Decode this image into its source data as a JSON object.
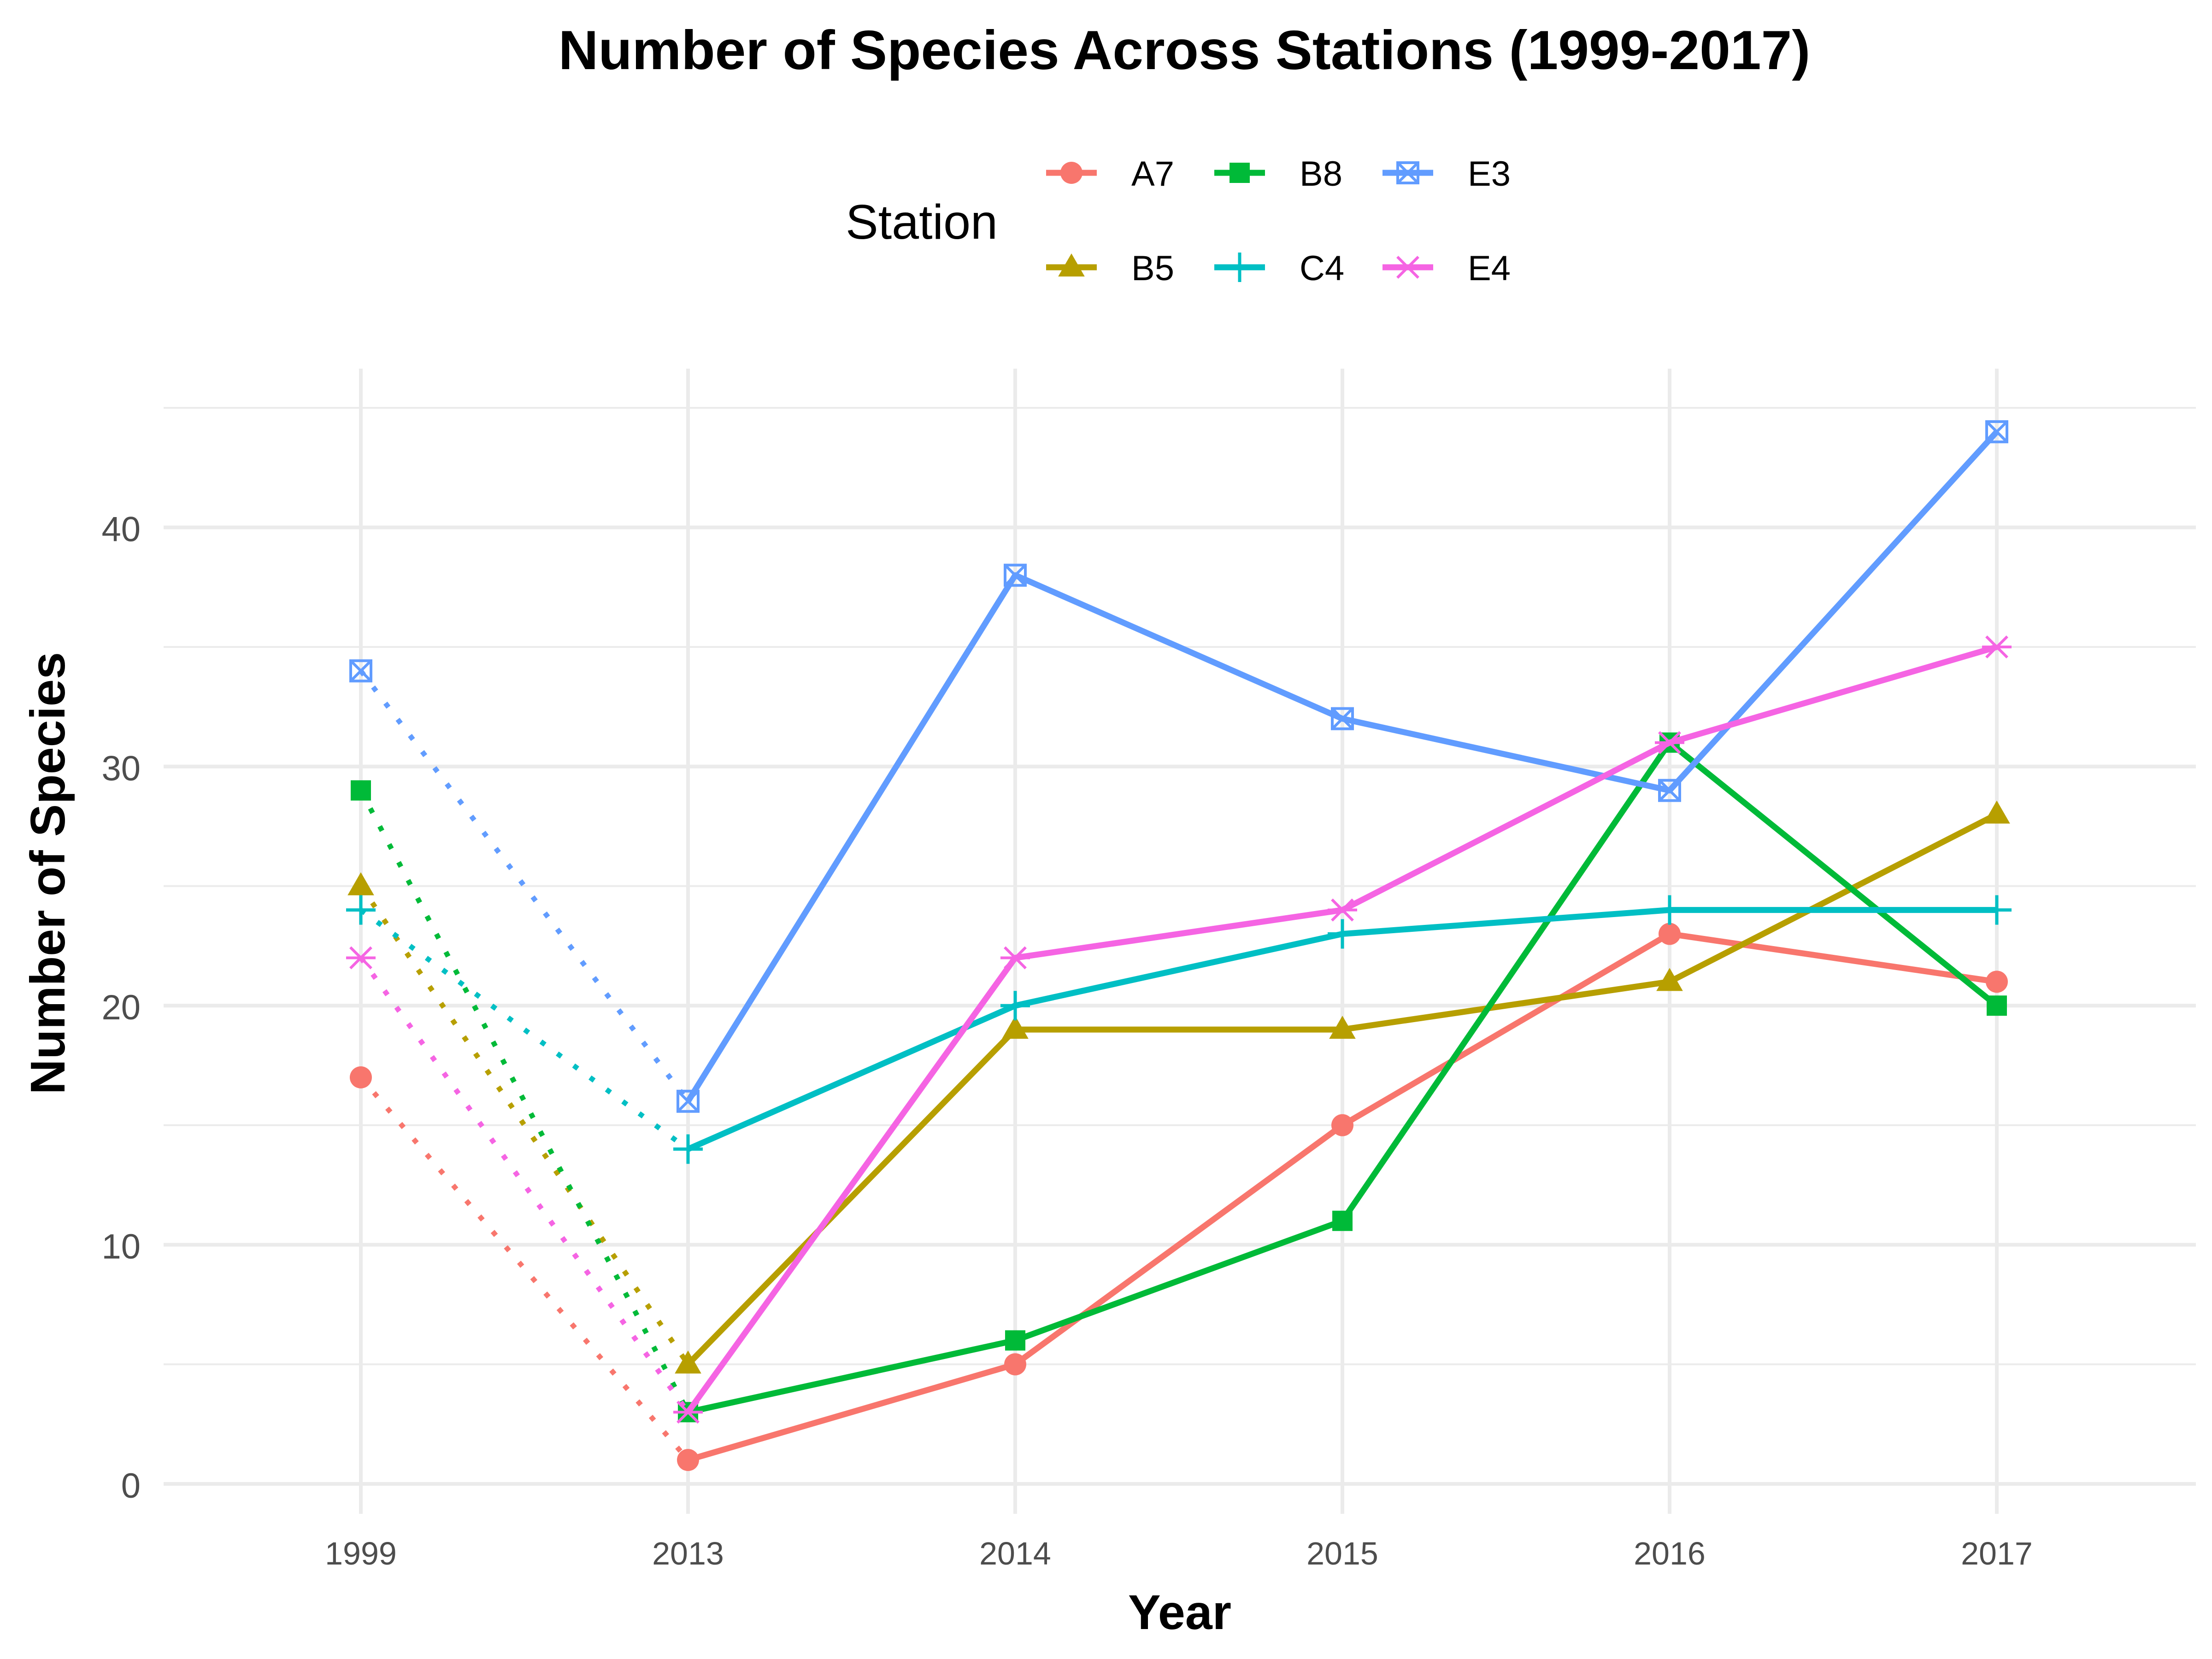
{
  "chart_data": {
    "type": "line",
    "title": "Number of Species Across Stations (1999-2017)",
    "xlabel": "Year",
    "ylabel": "Number of Species",
    "categories": [
      "1999",
      "2013",
      "2014",
      "2015",
      "2016",
      "2017"
    ],
    "ylim": [
      0,
      45
    ],
    "yticks": [
      0,
      10,
      20,
      30,
      40
    ],
    "grid": true,
    "legend": {
      "title": "Station",
      "placement": "top",
      "entries": [
        "A7",
        "B5",
        "B8",
        "C4",
        "E3",
        "E4"
      ]
    },
    "line_style": "dotted between 1999 and 2013, solid from 2013 onward",
    "series": [
      {
        "name": "A7",
        "color": "#F8766D",
        "marker": "circle",
        "values": [
          17,
          1,
          5,
          15,
          23,
          21
        ]
      },
      {
        "name": "B5",
        "color": "#B79F00",
        "marker": "triangle",
        "values": [
          25,
          5,
          19,
          19,
          21,
          28
        ]
      },
      {
        "name": "B8",
        "color": "#00BA38",
        "marker": "square",
        "values": [
          29,
          3,
          6,
          11,
          31,
          20
        ]
      },
      {
        "name": "C4",
        "color": "#00BFC4",
        "marker": "plus",
        "values": [
          24,
          14,
          20,
          23,
          24,
          24
        ]
      },
      {
        "name": "E3",
        "color": "#619CFF",
        "marker": "boxed-x",
        "values": [
          34,
          16,
          38,
          32,
          29,
          44
        ]
      },
      {
        "name": "E4",
        "color": "#F564E3",
        "marker": "asterisk",
        "values": [
          22,
          3,
          22,
          24,
          31,
          35
        ]
      }
    ]
  }
}
